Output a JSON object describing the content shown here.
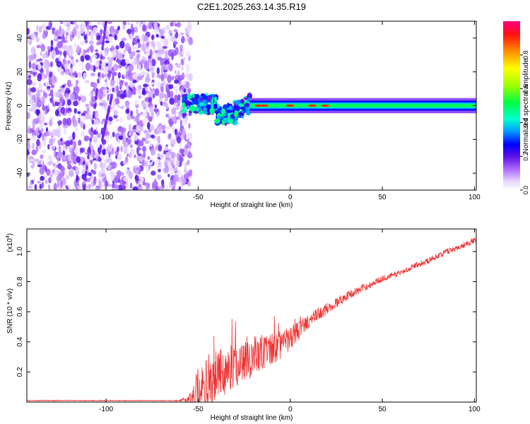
{
  "title": "C2E1.2025.263.14.35.R19",
  "chart_data": [
    {
      "type": "heatmap",
      "xlabel": "Height of straight line (km)",
      "ylabel": "Frequency (Hz)",
      "xlim": [
        -143,
        101
      ],
      "ylim": [
        -50,
        50
      ],
      "xticks": [
        -100,
        -50,
        0,
        50,
        100
      ],
      "yticks": [
        -40,
        -20,
        0,
        20,
        40
      ],
      "colorbar": {
        "label": "Normalized spectral amplitude",
        "range": [
          0,
          1
        ],
        "ticks": [
          "0.0",
          "0.2",
          "0.4",
          "0.6",
          "0.8"
        ]
      },
      "features": [
        {
          "description": "broadband noise",
          "x_range": [
            -143,
            -58
          ],
          "y_range": [
            -50,
            50
          ],
          "amplitude": 0.15
        },
        {
          "description": "transition band",
          "x_range": [
            -58,
            -22
          ],
          "y_range": [
            -10,
            6
          ],
          "amplitude": 0.4
        },
        {
          "description": "narrow carrier line near 0 Hz",
          "x_range": [
            -22,
            101
          ],
          "y_center": 0,
          "amplitude": 0.5
        },
        {
          "description": "peak amplitude spots",
          "x_values": [
            -17,
            -14,
            0,
            12,
            19
          ],
          "amplitude": 0.9
        }
      ]
    },
    {
      "type": "line",
      "xlabel": "Height of straight line (km)",
      "ylabel": "SNR (10 * v/v)",
      "yscale_label": "(x10",
      "yscale_exp": "4",
      "yscale_close": ")",
      "xlim": [
        -143,
        101
      ],
      "ylim": [
        0,
        1.15
      ],
      "xticks": [
        -100,
        -50,
        0,
        50,
        100
      ],
      "yticks": [
        "0.2",
        "0.4",
        "0.6",
        "0.8",
        "1.0"
      ],
      "color": "#ee3333",
      "series": [
        {
          "name": "SNR",
          "x": [
            -143,
            -120,
            -100,
            -80,
            -60,
            -55,
            -50,
            -45,
            -40,
            -35,
            -30,
            -25,
            -20,
            -15,
            -10,
            -5,
            0,
            5,
            10,
            15,
            20,
            25,
            30,
            35,
            40,
            45,
            50,
            55,
            60,
            65,
            70,
            75,
            80,
            85,
            90,
            95,
            101
          ],
          "y": [
            0.01,
            0.01,
            0.01,
            0.01,
            0.01,
            0.02,
            0.05,
            0.12,
            0.17,
            0.21,
            0.24,
            0.27,
            0.31,
            0.32,
            0.35,
            0.38,
            0.42,
            0.48,
            0.54,
            0.58,
            0.62,
            0.66,
            0.7,
            0.73,
            0.76,
            0.79,
            0.82,
            0.84,
            0.86,
            0.89,
            0.92,
            0.94,
            0.97,
            1.0,
            1.02,
            1.05,
            1.08
          ]
        }
      ],
      "amplitude_envelope": {
        "x": [
          -143,
          -60,
          -55,
          -50,
          -45,
          -40,
          -35,
          -30,
          -25,
          -20,
          -15,
          -10,
          -5,
          0,
          10,
          20,
          30,
          50,
          101
        ],
        "a": [
          0.003,
          0.003,
          0.03,
          0.15,
          0.18,
          0.17,
          0.16,
          0.15,
          0.14,
          0.14,
          0.13,
          0.11,
          0.1,
          0.08,
          0.05,
          0.04,
          0.03,
          0.02,
          0.02
        ]
      }
    }
  ]
}
